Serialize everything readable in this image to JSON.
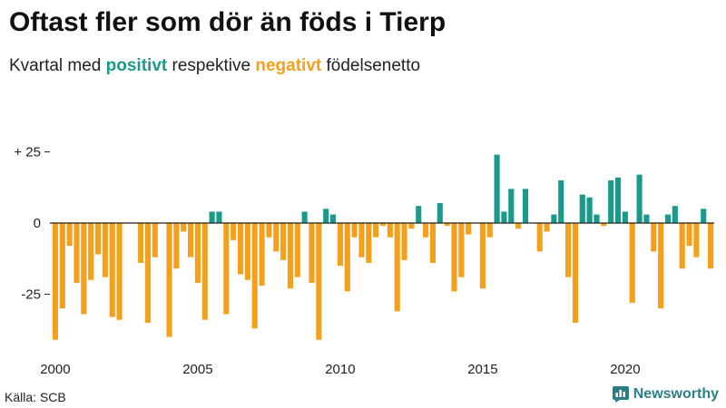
{
  "title": "Oftast fler som dör än föds i Tierp",
  "subtitle": {
    "prefix": "Kvartal med ",
    "positive": "positivt",
    "middle": " respektive ",
    "negative": "negativt",
    "suffix": " födelsenetto"
  },
  "source": "Källa: SCB",
  "brand": {
    "name": "Newsworthy",
    "icon": "bar-chart-speech-icon"
  },
  "colors": {
    "positive": "#1a9a8a",
    "negative": "#f5a01a",
    "axis": "#222222",
    "text": "#222222",
    "brand": "#2a7f86"
  },
  "chart_data": {
    "type": "bar",
    "title": "Oftast fler som dör än föds i Tierp",
    "xlabel": "",
    "ylabel": "",
    "ylim": [
      -43,
      27
    ],
    "yticks": [
      25,
      0,
      -25
    ],
    "ytick_labels": [
      "+ 25",
      "0",
      "-25"
    ],
    "xticks": [
      2000,
      2005,
      2010,
      2015,
      2020
    ],
    "xtick_labels": [
      "2000",
      "2005",
      "2010",
      "2015",
      "2020"
    ],
    "start_year": 2000,
    "quarters_per_year": 4,
    "grid": false,
    "values": [
      -41,
      -30,
      -8,
      -21,
      -32,
      -20,
      -11,
      -19,
      -33,
      -34,
      0,
      0,
      -14,
      -35,
      -12,
      0,
      -40,
      -16,
      -3,
      -12,
      -21,
      -34,
      4,
      4,
      -32,
      -6,
      -18,
      -20,
      -37,
      -22,
      -5,
      -10,
      -13,
      -23,
      -19,
      4,
      -21,
      -41,
      5,
      3,
      -15,
      -24,
      -5,
      -12,
      -14,
      -5,
      -1,
      -5,
      -31,
      -13,
      -2,
      6,
      -5,
      -14,
      7,
      -1,
      -24,
      -19,
      -4,
      0,
      -23,
      -5,
      24,
      4,
      12,
      -2,
      12,
      0,
      -10,
      -3,
      3,
      15,
      -19,
      -35,
      10,
      9,
      3,
      -1,
      15,
      16,
      4,
      -28,
      17,
      3,
      -10,
      -30,
      3,
      6,
      -16,
      -8,
      -12,
      5,
      -16
    ]
  }
}
